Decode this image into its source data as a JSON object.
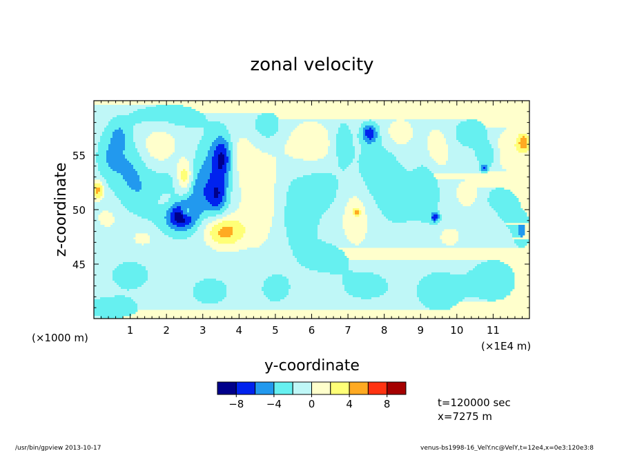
{
  "chart_data": {
    "type": "heatmap",
    "title": "zonal velocity",
    "xlabel": "y-coordinate",
    "ylabel": "z-coordinate",
    "x_unit_note": "(×1E4 m)",
    "y_unit_note": "(×1000 m)",
    "xlim": [
      0,
      12
    ],
    "ylim": [
      40,
      60
    ],
    "x_ticks": [
      1,
      2,
      3,
      4,
      5,
      6,
      7,
      8,
      9,
      10,
      11
    ],
    "y_ticks": [
      45,
      50,
      55
    ],
    "colorbar": {
      "levels": [
        -10,
        -8,
        -6,
        -4,
        -2,
        0,
        2,
        4,
        6,
        8,
        10
      ],
      "tick_values": [
        -8,
        -4,
        0,
        4,
        8
      ],
      "tick_labels": [
        "−8",
        "−4",
        "0",
        "4",
        "8"
      ],
      "colors": [
        "#00008b",
        "#0022ee",
        "#2299ee",
        "#66f0f0",
        "#bff7f7",
        "#ffffcc",
        "#ffff77",
        "#ffaa22",
        "#ff3311",
        "#a50000"
      ]
    },
    "blobs": [
      {
        "x": 0.1,
        "z": 51.8,
        "sx": 0.12,
        "sz": 0.6,
        "a": 6
      },
      {
        "x": 0.45,
        "z": 54.8,
        "sx": 0.25,
        "sz": 1.6,
        "a": -3.0
      },
      {
        "x": 0.7,
        "z": 56.8,
        "sx": 0.18,
        "sz": 0.9,
        "a": -2.6
      },
      {
        "x": 0.35,
        "z": 49.2,
        "sx": 0.18,
        "sz": 0.6,
        "a": 2.2
      },
      {
        "x": 1.0,
        "z": 53.5,
        "sx": 0.3,
        "sz": 2.0,
        "a": -2.8
      },
      {
        "x": 1.35,
        "z": 47.4,
        "sx": 0.2,
        "sz": 0.5,
        "a": 2.3
      },
      {
        "x": 1.55,
        "z": 51.5,
        "sx": 0.4,
        "sz": 1.6,
        "a": -2.1
      },
      {
        "x": 1.8,
        "z": 56.0,
        "sx": 0.35,
        "sz": 1.4,
        "a": 2.7
      },
      {
        "x": 2.0,
        "z": 50.8,
        "sx": 0.3,
        "sz": 0.9,
        "a": 2.4
      },
      {
        "x": 2.4,
        "z": 49.4,
        "sx": 0.26,
        "sz": 0.85,
        "a": -7.0
      },
      {
        "x": 2.4,
        "z": 50.6,
        "sx": 0.5,
        "sz": 2.2,
        "a": -2.4
      },
      {
        "x": 2.5,
        "z": 53.0,
        "sx": 0.16,
        "sz": 1.1,
        "a": 5.3
      },
      {
        "x": 2.55,
        "z": 49.8,
        "sx": 0.12,
        "sz": 0.4,
        "a": 4.5
      },
      {
        "x": 2.9,
        "z": 51.5,
        "sx": 0.22,
        "sz": 1.6,
        "a": -2.5
      },
      {
        "x": 3.3,
        "z": 54.0,
        "sx": 0.35,
        "sz": 2.0,
        "a": -2.8
      },
      {
        "x": 3.55,
        "z": 54.8,
        "sx": 0.2,
        "sz": 1.4,
        "a": -6.0
      },
      {
        "x": 3.4,
        "z": 51.2,
        "sx": 0.2,
        "sz": 1.2,
        "a": -5.6
      },
      {
        "x": 3.6,
        "z": 48.0,
        "sx": 0.38,
        "sz": 1.0,
        "a": 5.8
      },
      {
        "x": 4.0,
        "z": 55.0,
        "sx": 0.3,
        "sz": 1.5,
        "a": 2.2
      },
      {
        "x": 4.6,
        "z": 51.0,
        "sx": 0.4,
        "sz": 3.0,
        "a": 3.0
      },
      {
        "x": 4.8,
        "z": 57.5,
        "sx": 0.35,
        "sz": 1.2,
        "a": -2.4
      },
      {
        "x": 5.9,
        "z": 56.0,
        "sx": 0.6,
        "sz": 1.6,
        "a": 2.5
      },
      {
        "x": 5.6,
        "z": 50.0,
        "sx": 0.5,
        "sz": 3.0,
        "a": -2.1
      },
      {
        "x": 6.3,
        "z": 52.0,
        "sx": 0.3,
        "sz": 1.2,
        "a": -2.2
      },
      {
        "x": 6.85,
        "z": 56.0,
        "sx": 0.2,
        "sz": 1.6,
        "a": -2.8
      },
      {
        "x": 7.2,
        "z": 49.0,
        "sx": 0.25,
        "sz": 1.8,
        "a": 2.8
      },
      {
        "x": 7.25,
        "z": 49.8,
        "sx": 0.06,
        "sz": 0.2,
        "a": 5.0
      },
      {
        "x": 7.6,
        "z": 57.0,
        "sx": 0.15,
        "sz": 0.6,
        "a": -6.2
      },
      {
        "x": 7.8,
        "z": 54.0,
        "sx": 0.4,
        "sz": 2.0,
        "a": -2.3
      },
      {
        "x": 8.4,
        "z": 57.0,
        "sx": 0.3,
        "sz": 1.0,
        "a": 2.4
      },
      {
        "x": 8.4,
        "z": 51.0,
        "sx": 0.4,
        "sz": 1.8,
        "a": -2.1
      },
      {
        "x": 9.2,
        "z": 52.0,
        "sx": 0.25,
        "sz": 2.2,
        "a": -2.4
      },
      {
        "x": 9.45,
        "z": 55.5,
        "sx": 0.25,
        "sz": 1.5,
        "a": 2.7
      },
      {
        "x": 9.4,
        "z": 49.3,
        "sx": 0.08,
        "sz": 0.3,
        "a": -6.0
      },
      {
        "x": 9.8,
        "z": 47.5,
        "sx": 0.2,
        "sz": 0.6,
        "a": 2.5
      },
      {
        "x": 10.3,
        "z": 51.5,
        "sx": 0.25,
        "sz": 1.0,
        "a": 2.2
      },
      {
        "x": 10.85,
        "z": 55.0,
        "sx": 0.2,
        "sz": 0.8,
        "a": -3.2
      },
      {
        "x": 10.75,
        "z": 53.8,
        "sx": 0.06,
        "sz": 0.25,
        "a": -5.0
      },
      {
        "x": 10.9,
        "z": 49.0,
        "sx": 0.3,
        "sz": 1.0,
        "a": 2.1
      },
      {
        "x": 11.45,
        "z": 55.5,
        "sx": 0.35,
        "sz": 1.5,
        "a": 2.7
      },
      {
        "x": 11.85,
        "z": 56.2,
        "sx": 0.12,
        "sz": 0.6,
        "a": 5.6
      },
      {
        "x": 11.2,
        "z": 50.0,
        "sx": 0.4,
        "sz": 1.6,
        "a": -2.5
      },
      {
        "x": 11.8,
        "z": 48.0,
        "sx": 0.15,
        "sz": 0.9,
        "a": -3.2
      },
      {
        "x": 10.4,
        "z": 57.0,
        "sx": 0.4,
        "sz": 1.0,
        "a": -2.2
      },
      {
        "x": 1.0,
        "z": 44.0,
        "sx": 0.4,
        "sz": 1.0,
        "a": -2.1
      },
      {
        "x": 3.2,
        "z": 42.5,
        "sx": 0.4,
        "sz": 1.0,
        "a": -2.0
      },
      {
        "x": 5.0,
        "z": 42.8,
        "sx": 0.3,
        "sz": 1.0,
        "a": -2.1
      },
      {
        "x": 7.5,
        "z": 43.0,
        "sx": 0.5,
        "sz": 1.0,
        "a": -2.0
      },
      {
        "x": 9.5,
        "z": 42.5,
        "sx": 0.5,
        "sz": 1.5,
        "a": -2.0
      },
      {
        "x": 11.0,
        "z": 43.5,
        "sx": 0.5,
        "sz": 1.5,
        "a": -2.1
      },
      {
        "x": 6.5,
        "z": 45.5,
        "sx": 0.5,
        "sz": 1.0,
        "a": -2.0
      },
      {
        "x": 0.5,
        "z": 41.0,
        "sx": 0.6,
        "sz": 0.8,
        "a": -2.0
      },
      {
        "x": 2.0,
        "z": 58.5,
        "sx": 0.8,
        "sz": 1.0,
        "a": -2.0
      }
    ]
  },
  "info": {
    "time_text": "t=120000 sec",
    "x_text": "x=7275 m"
  },
  "footer": {
    "left_text": "/usr/bin/gpview  2013-10-17",
    "right_text": "venus-bs1998-16_VelY.nc@VelY,t=12e4,x=0e3:120e3:8"
  }
}
